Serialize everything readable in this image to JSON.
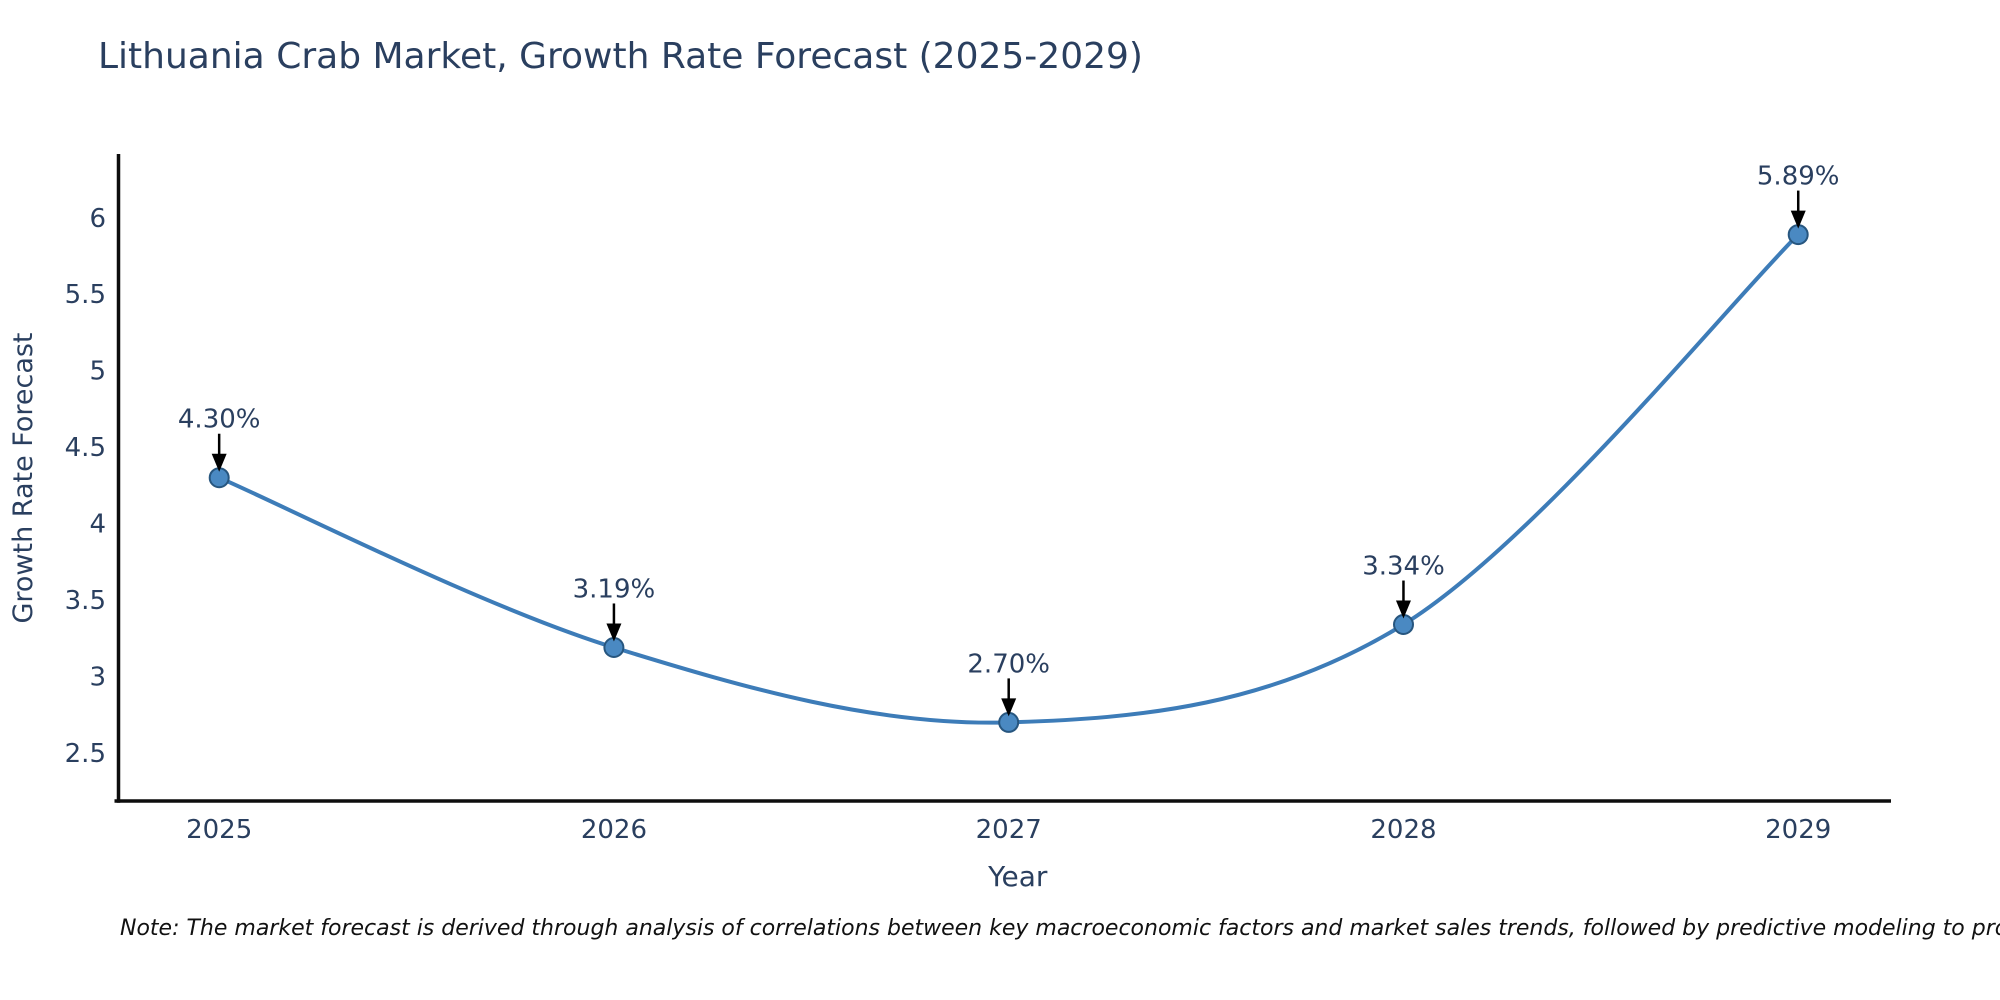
{
  "chart_data": {
    "type": "line",
    "title": "Lithuania Crab Market, Growth Rate Forecast (2025-2029)",
    "xlabel": "Year",
    "ylabel": "Growth Rate Forecast",
    "x": [
      2025,
      2026,
      2027,
      2028,
      2029
    ],
    "xtick_labels": [
      "2025",
      "2026",
      "2027",
      "2028",
      "2029"
    ],
    "series": [
      {
        "name": "Growth Rate Forecast",
        "values": [
          4.3,
          3.19,
          2.7,
          3.34,
          5.89
        ],
        "point_labels": [
          "4.30%",
          "3.19%",
          "2.70%",
          "3.34%",
          "5.89%"
        ]
      }
    ],
    "yticks": [
      2.5,
      3,
      3.5,
      4,
      4.5,
      5,
      5.5,
      6
    ],
    "ytick_labels": [
      "2.5",
      "3",
      "3.5",
      "4",
      "4.5",
      "5",
      "5.5",
      "6"
    ],
    "ylim": [
      2.186,
      6.417
    ],
    "xlim": [
      2024.745,
      2029.235
    ],
    "line_shape": "spline",
    "grid": false,
    "legend_position": "none",
    "annotations_style": "value label with down arrow to each point",
    "colors": {
      "line": "#3d7cb8",
      "marker_fill": "#4a89c2",
      "marker_stroke": "#27567f",
      "arrow": "#000000",
      "axis": "#0d0d0d",
      "text": "#2a3f5f"
    },
    "note": "Note: The market forecast is derived through analysis of correlations between key macroeconomic factors and market sales trends, followed by predictive modeling to project future sales"
  }
}
